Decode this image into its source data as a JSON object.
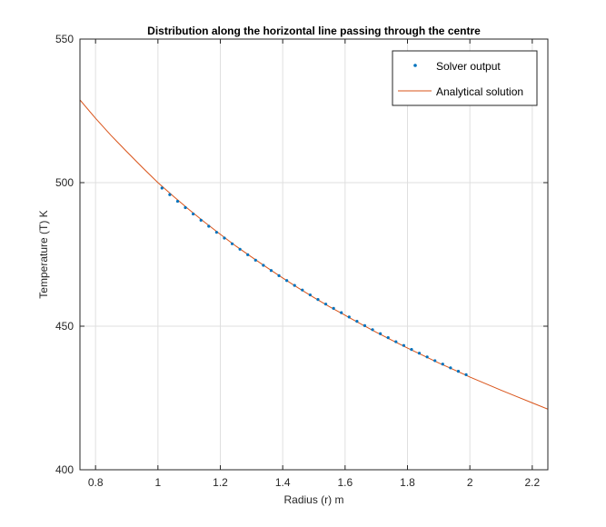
{
  "chart_data": {
    "type": "line",
    "title": "Distribution along the horizontal line passing through the centre",
    "xlabel": "Radius (r) m",
    "ylabel": "Temperature (T) K",
    "xlim": [
      0.75,
      2.25
    ],
    "ylim": [
      400,
      550
    ],
    "xticks": [
      0.8,
      1.0,
      1.2,
      1.4,
      1.6,
      1.8,
      2.0,
      2.2
    ],
    "xtick_labels": [
      "0.8",
      "1",
      "1.2",
      "1.4",
      "1.6",
      "1.8",
      "2",
      "2.2"
    ],
    "yticks": [
      400,
      450,
      500,
      550
    ],
    "ytick_labels": [
      "400",
      "450",
      "500",
      "550"
    ],
    "grid": true,
    "legend_position": "top-right",
    "series": [
      {
        "name": "Solver output",
        "kind": "scatter",
        "color": "#0072BD",
        "x": [
          1.013,
          1.038,
          1.063,
          1.088,
          1.113,
          1.138,
          1.163,
          1.188,
          1.213,
          1.238,
          1.263,
          1.288,
          1.313,
          1.338,
          1.363,
          1.388,
          1.413,
          1.438,
          1.463,
          1.488,
          1.513,
          1.538,
          1.563,
          1.588,
          1.613,
          1.638,
          1.663,
          1.688,
          1.713,
          1.738,
          1.763,
          1.788,
          1.813,
          1.838,
          1.863,
          1.888,
          1.913,
          1.938,
          1.963,
          1.988
        ],
        "y": [
          498.1,
          495.8,
          493.5,
          491.3,
          489.1,
          486.9,
          484.8,
          482.7,
          480.7,
          478.7,
          476.8,
          474.9,
          473.0,
          471.2,
          469.4,
          467.6,
          465.9,
          464.2,
          462.6,
          460.9,
          459.3,
          457.7,
          456.2,
          454.7,
          453.2,
          451.7,
          450.2,
          448.8,
          447.4,
          446.0,
          444.6,
          443.3,
          441.9,
          440.6,
          439.3,
          438.0,
          436.8,
          435.5,
          434.3,
          433.1
        ]
      },
      {
        "name": "Analytical solution",
        "kind": "line",
        "color": "#D95319",
        "x": [
          0.75,
          0.8,
          0.85,
          0.9,
          0.95,
          1.0,
          1.05,
          1.1,
          1.15,
          1.2,
          1.25,
          1.3,
          1.35,
          1.4,
          1.45,
          1.5,
          1.55,
          1.6,
          1.65,
          1.7,
          1.75,
          1.8,
          1.85,
          1.9,
          1.95,
          2.0,
          2.05,
          2.1,
          2.15,
          2.2,
          2.25
        ],
        "y": [
          528.8,
          522.4,
          516.4,
          510.8,
          505.3,
          500.0,
          495.2,
          490.6,
          486.2,
          482.0,
          477.9,
          474.1,
          470.4,
          466.8,
          463.3,
          460.0,
          456.8,
          453.8,
          450.8,
          447.9,
          445.1,
          442.4,
          439.8,
          437.2,
          434.8,
          432.3,
          430.0,
          427.7,
          425.5,
          423.3,
          421.1
        ]
      }
    ]
  }
}
